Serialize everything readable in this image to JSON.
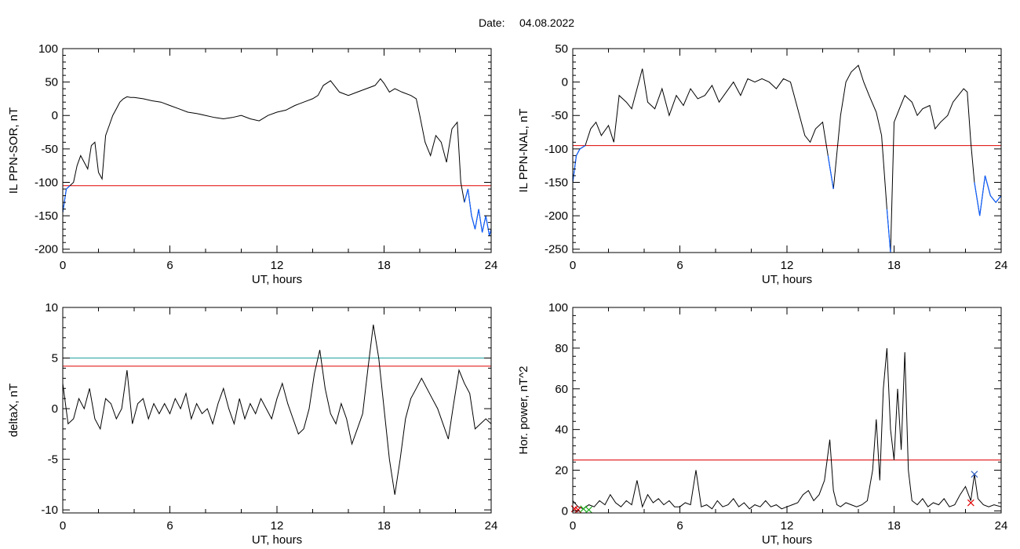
{
  "header": {
    "date_label": "Date:",
    "date_value": "04.08.2022"
  },
  "chart_data": [
    {
      "type": "line",
      "xlabel": "UT, hours",
      "ylabel": "IL PPN-SOR, nT",
      "xlim": [
        0,
        24
      ],
      "ylim": [
        -205,
        100
      ],
      "xticks": [
        0,
        6,
        12,
        18,
        24
      ],
      "yticks": [
        100,
        50,
        0,
        -50,
        -100,
        -150,
        -200
      ],
      "threshold_lines": [
        {
          "y": -105,
          "color": "#e00000"
        }
      ],
      "highlight_color": "#1060ff",
      "series": [
        {
          "color": "#000000",
          "x": [
            0,
            0.2,
            0.4,
            0.6,
            0.8,
            1.0,
            1.2,
            1.4,
            1.6,
            1.8,
            2.0,
            2.2,
            2.4,
            2.6,
            2.8,
            3.0,
            3.2,
            3.4,
            3.6,
            3.8,
            4.0,
            4.5,
            5.0,
            5.5,
            6.0,
            6.5,
            7.0,
            7.5,
            8.0,
            8.5,
            9.0,
            9.5,
            10.0,
            10.5,
            11.0,
            11.5,
            12.0,
            12.5,
            13.0,
            13.5,
            14.0,
            14.3,
            14.6,
            15.0,
            15.5,
            16.0,
            16.5,
            17.0,
            17.5,
            17.8,
            18.0,
            18.3,
            18.6,
            19.0,
            19.5,
            19.8,
            20.0,
            20.3,
            20.6,
            20.9,
            21.2,
            21.5,
            21.8,
            22.1,
            22.3,
            22.5,
            22.7,
            22.9,
            23.1,
            23.3,
            23.5,
            23.7,
            23.9,
            24.0
          ],
          "y": [
            -145,
            -110,
            -105,
            -100,
            -75,
            -60,
            -70,
            -80,
            -45,
            -40,
            -85,
            -95,
            -30,
            -15,
            0,
            10,
            20,
            25,
            28,
            27,
            27,
            25,
            22,
            20,
            15,
            10,
            5,
            3,
            0,
            -3,
            -5,
            -3,
            0,
            -5,
            -8,
            0,
            5,
            8,
            15,
            20,
            25,
            30,
            45,
            52,
            35,
            30,
            35,
            40,
            45,
            55,
            48,
            35,
            40,
            35,
            30,
            25,
            0,
            -40,
            -60,
            -30,
            -40,
            -70,
            -20,
            -10,
            -100,
            -130,
            -110,
            -150,
            -170,
            -140,
            -175,
            -150,
            -180,
            -170
          ]
        }
      ]
    },
    {
      "type": "line",
      "xlabel": "UT, hours",
      "ylabel": "IL PPN-NAL, nT",
      "xlim": [
        0,
        24
      ],
      "ylim": [
        -255,
        50
      ],
      "xticks": [
        0,
        6,
        12,
        18,
        24
      ],
      "yticks": [
        50,
        0,
        -50,
        -100,
        -150,
        -200,
        -250
      ],
      "threshold_lines": [
        {
          "y": -95,
          "color": "#e00000"
        }
      ],
      "highlight_color": "#1060ff",
      "series": [
        {
          "color": "#000000",
          "x": [
            0,
            0.2,
            0.4,
            0.7,
            1.0,
            1.3,
            1.6,
            2.0,
            2.3,
            2.6,
            3.0,
            3.3,
            3.6,
            3.9,
            4.2,
            4.6,
            5.0,
            5.4,
            5.8,
            6.2,
            6.6,
            7.0,
            7.4,
            7.8,
            8.2,
            8.6,
            9.0,
            9.4,
            9.8,
            10.2,
            10.6,
            11.0,
            11.4,
            11.8,
            12.2,
            12.6,
            13.0,
            13.3,
            13.6,
            14.0,
            14.3,
            14.6,
            15.0,
            15.3,
            15.6,
            16.0,
            16.3,
            16.6,
            17.0,
            17.3,
            17.6,
            17.8,
            18.0,
            18.3,
            18.6,
            19.0,
            19.3,
            19.6,
            20.0,
            20.3,
            20.6,
            21.0,
            21.3,
            21.6,
            21.9,
            22.1,
            22.3,
            22.5,
            22.8,
            23.1,
            23.4,
            23.7,
            24.0
          ],
          "y": [
            -150,
            -110,
            -100,
            -95,
            -70,
            -60,
            -80,
            -65,
            -90,
            -20,
            -30,
            -40,
            -10,
            20,
            -30,
            -40,
            -10,
            -50,
            -20,
            -35,
            -10,
            -25,
            -20,
            -5,
            -30,
            -15,
            0,
            -20,
            5,
            0,
            5,
            0,
            -10,
            5,
            0,
            -40,
            -80,
            -90,
            -70,
            -60,
            -110,
            -160,
            -50,
            0,
            15,
            25,
            0,
            -20,
            -45,
            -80,
            -190,
            -255,
            -60,
            -40,
            -20,
            -30,
            -50,
            -40,
            -35,
            -70,
            -60,
            -50,
            -30,
            -20,
            -10,
            -15,
            -90,
            -150,
            -200,
            -140,
            -170,
            -180,
            -170
          ]
        }
      ]
    },
    {
      "type": "line",
      "xlabel": "UT, hours",
      "ylabel": "deltaX, nT",
      "xlim": [
        0,
        24
      ],
      "ylim": [
        -10.3,
        10
      ],
      "xticks": [
        0,
        6,
        12,
        18,
        24
      ],
      "yticks": [
        10,
        5,
        0,
        -5,
        -10
      ],
      "threshold_lines": [
        {
          "y": 5,
          "color": "#20a0a0"
        },
        {
          "y": 4.2,
          "color": "#e00000"
        }
      ],
      "series": [
        {
          "color": "#000000",
          "x": [
            0,
            0.3,
            0.6,
            0.9,
            1.2,
            1.5,
            1.8,
            2.1,
            2.4,
            2.7,
            3.0,
            3.3,
            3.6,
            3.9,
            4.2,
            4.5,
            4.8,
            5.1,
            5.4,
            5.7,
            6.0,
            6.3,
            6.6,
            6.9,
            7.2,
            7.5,
            7.8,
            8.1,
            8.4,
            8.7,
            9.0,
            9.3,
            9.6,
            9.9,
            10.2,
            10.5,
            10.8,
            11.1,
            11.4,
            11.7,
            12.0,
            12.3,
            12.6,
            12.9,
            13.2,
            13.5,
            13.8,
            14.1,
            14.4,
            14.7,
            15.0,
            15.3,
            15.6,
            15.9,
            16.2,
            16.5,
            16.8,
            17.1,
            17.4,
            17.7,
            18.0,
            18.3,
            18.6,
            18.9,
            19.2,
            19.5,
            19.8,
            20.1,
            20.4,
            20.7,
            21.0,
            21.3,
            21.6,
            21.9,
            22.2,
            22.5,
            22.8,
            23.1,
            23.4,
            23.7,
            24.0
          ],
          "y": [
            2.5,
            -1.5,
            -1.0,
            1.0,
            0.0,
            2.0,
            -1.0,
            -2.0,
            1.0,
            0.5,
            -1.0,
            0.0,
            3.8,
            -1.5,
            0.5,
            1.0,
            -1.0,
            0.5,
            -0.5,
            0.5,
            -0.5,
            1.0,
            0.0,
            1.5,
            -1.0,
            0.5,
            -0.5,
            0.0,
            -1.5,
            0.5,
            2.0,
            0.0,
            -1.5,
            1.0,
            -1.0,
            0.5,
            -0.5,
            1.0,
            0.0,
            -1.0,
            1.0,
            2.5,
            0.5,
            -1.0,
            -2.5,
            -2.0,
            0.0,
            3.5,
            5.8,
            2.0,
            -0.5,
            -1.5,
            0.5,
            -1.0,
            -3.5,
            -2.0,
            -0.5,
            4.0,
            8.3,
            5.0,
            0.0,
            -5.0,
            -8.5,
            -5.0,
            -1.0,
            1.0,
            2.0,
            3.0,
            2.0,
            1.0,
            0.0,
            -1.5,
            -3.0,
            0.5,
            3.8,
            2.5,
            1.5,
            -2.0,
            -1.5,
            -1.0,
            -1.5
          ]
        }
      ]
    },
    {
      "type": "line",
      "xlabel": "UT, hours",
      "ylabel": "Hor. power, nT^2",
      "xlim": [
        0,
        24
      ],
      "ylim": [
        -1,
        100
      ],
      "xticks": [
        0,
        6,
        12,
        18,
        24
      ],
      "yticks": [
        100,
        80,
        60,
        40,
        20,
        0
      ],
      "threshold_lines": [
        {
          "y": 25,
          "color": "#e00000"
        }
      ],
      "series": [
        {
          "color": "#000000",
          "x": [
            0,
            0.3,
            0.6,
            0.9,
            1.2,
            1.5,
            1.8,
            2.1,
            2.4,
            2.7,
            3.0,
            3.3,
            3.6,
            3.9,
            4.2,
            4.5,
            4.8,
            5.1,
            5.4,
            5.7,
            6.0,
            6.3,
            6.6,
            6.9,
            7.2,
            7.5,
            7.8,
            8.1,
            8.4,
            8.7,
            9.0,
            9.3,
            9.6,
            9.9,
            10.2,
            10.5,
            10.8,
            11.1,
            11.4,
            11.7,
            12.0,
            12.3,
            12.6,
            12.9,
            13.2,
            13.5,
            13.8,
            14.1,
            14.4,
            14.6,
            14.8,
            15.0,
            15.3,
            15.6,
            15.9,
            16.2,
            16.5,
            16.8,
            17.0,
            17.2,
            17.4,
            17.6,
            17.8,
            18.0,
            18.2,
            18.4,
            18.6,
            18.8,
            19.0,
            19.3,
            19.6,
            19.9,
            20.2,
            20.5,
            20.8,
            21.1,
            21.4,
            21.7,
            22.0,
            22.3,
            22.5,
            22.7,
            23.0,
            23.3,
            23.6,
            24.0
          ],
          "y": [
            5,
            2,
            1,
            3,
            2,
            5,
            3,
            8,
            4,
            2,
            5,
            3,
            15,
            2,
            8,
            4,
            6,
            3,
            5,
            2,
            2,
            4,
            3,
            20,
            2,
            3,
            1,
            5,
            2,
            3,
            6,
            2,
            4,
            1,
            3,
            2,
            5,
            2,
            3,
            1,
            2,
            3,
            4,
            8,
            10,
            5,
            8,
            15,
            35,
            10,
            3,
            2,
            4,
            3,
            2,
            3,
            5,
            20,
            45,
            15,
            60,
            80,
            40,
            25,
            60,
            30,
            78,
            20,
            5,
            3,
            6,
            2,
            4,
            3,
            6,
            2,
            3,
            8,
            12,
            5,
            18,
            6,
            3,
            2,
            3,
            2
          ]
        }
      ],
      "markers": [
        {
          "x": 0.1,
          "y": 1,
          "color": "#e00000"
        },
        {
          "x": 0.3,
          "y": 0.5,
          "color": "#e00000"
        },
        {
          "x": 0.6,
          "y": 1,
          "color": "#20b020"
        },
        {
          "x": 0.9,
          "y": 0.5,
          "color": "#20b020"
        },
        {
          "x": 22.3,
          "y": 4,
          "color": "#e00000"
        },
        {
          "x": 22.5,
          "y": 18,
          "color": "#3060c0"
        }
      ]
    }
  ]
}
